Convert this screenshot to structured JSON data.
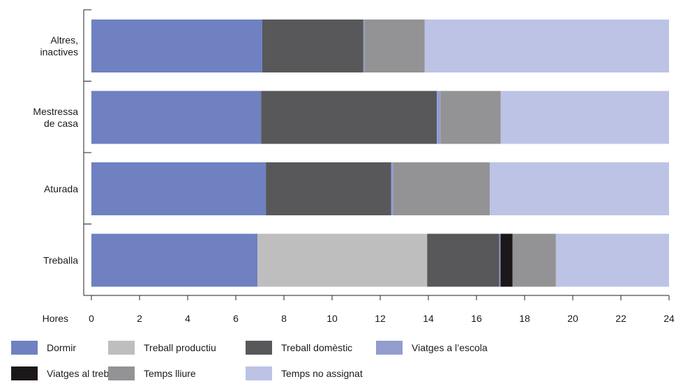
{
  "chart_data": {
    "type": "bar",
    "orientation": "horizontal",
    "stacked": true,
    "categories": [
      [
        "Altres,",
        "inactives"
      ],
      [
        "Mestressa",
        "de casa"
      ],
      [
        "Aturada"
      ],
      [
        "Treballa"
      ]
    ],
    "xlabel": "Hores",
    "xlim": [
      0,
      24
    ],
    "xticks": [
      "0",
      "2",
      "4",
      "6",
      "8",
      "10",
      "12",
      "14",
      "16",
      "18",
      "20",
      "22",
      "24"
    ],
    "legend_position": "bottom",
    "series": [
      {
        "name": "Dormir",
        "color": "#6f81c1",
        "values": [
          7.1,
          7.05,
          7.25,
          6.9
        ]
      },
      {
        "name": "Treball productiu",
        "color": "#bebebe",
        "values": [
          0,
          0,
          0,
          7.05
        ]
      },
      {
        "name": "Treball domèstic",
        "color": "#58585a",
        "values": [
          4.2,
          7.3,
          5.2,
          3.0
        ]
      },
      {
        "name": "Viatges a l’escola",
        "color": "#929dce",
        "values": [
          0.05,
          0.15,
          0.1,
          0.05
        ]
      },
      {
        "name": "Viatges al treball",
        "color": "#1c1718",
        "values": [
          0,
          0,
          0,
          0.5
        ]
      },
      {
        "name": "Temps lliure",
        "color": "#939395",
        "values": [
          2.5,
          2.5,
          4.0,
          1.8
        ]
      },
      {
        "name": "Temps no assignat",
        "color": "#bdc3e5",
        "values": [
          10.15,
          7.0,
          7.45,
          4.7
        ]
      }
    ]
  }
}
